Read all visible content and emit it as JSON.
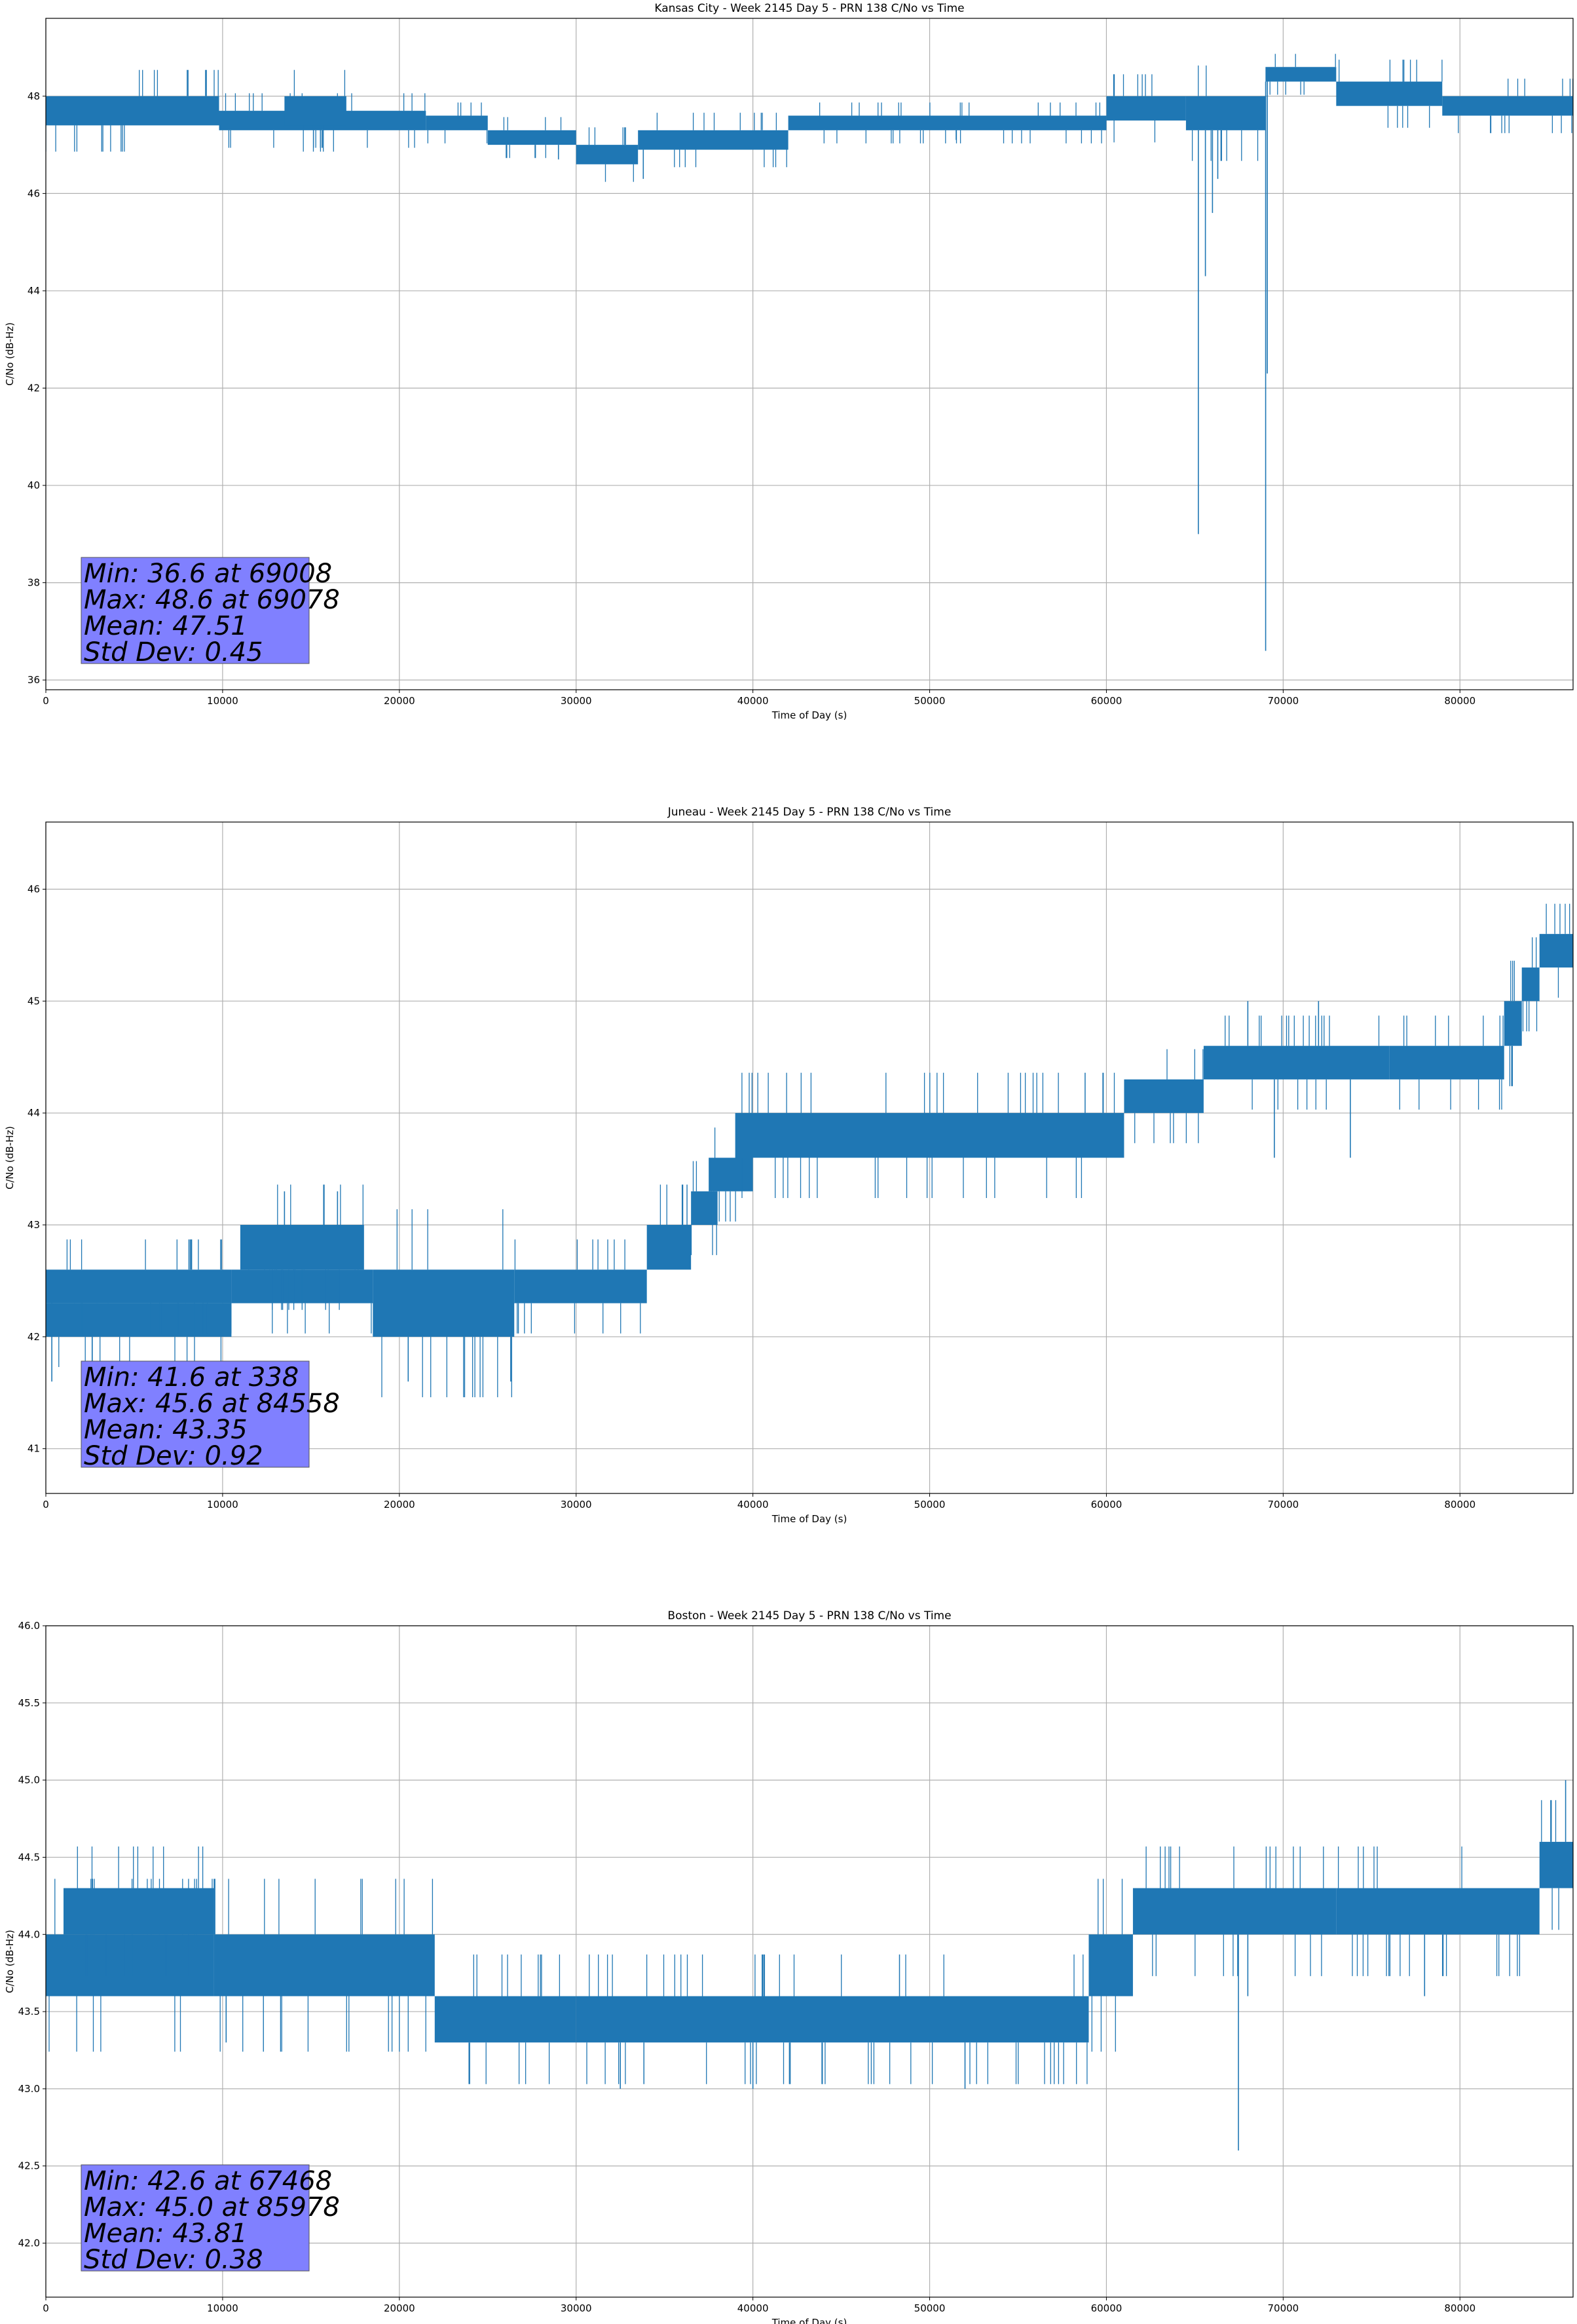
{
  "colors": {
    "line": "#1f77b4",
    "grid": "#b0b0b0",
    "stats_box": "#8080ff",
    "axes": "#000000"
  },
  "chart_data": [
    {
      "type": "line",
      "title": "Kansas City - Week 2145 Day 5 - PRN 138 C/No vs Time",
      "xlabel": "Time of Day (s)",
      "ylabel": "C/No (dB-Hz)",
      "xlim": [
        0,
        86400
      ],
      "ylim": [
        35.8,
        49.6
      ],
      "xticks": [
        0,
        10000,
        20000,
        30000,
        40000,
        50000,
        60000,
        70000,
        80000
      ],
      "yticks": [
        36,
        38,
        40,
        42,
        44,
        46,
        48
      ],
      "grid": true,
      "stats": [
        "Min: 36.6 at 69008",
        "Max: 48.6 at 69078",
        "Mean: 47.51",
        "Std Dev: 0.45"
      ],
      "series": [
        {
          "name": "C/No",
          "segments": [
            {
              "x": [
                0,
                9800
              ],
              "lo": 47.4,
              "hi": 48.0
            },
            {
              "x": [
                9800,
                21500
              ],
              "lo": 47.3,
              "hi": 47.7
            },
            {
              "x": [
                13500,
                17000
              ],
              "lo": 47.4,
              "hi": 48.0
            },
            {
              "x": [
                21500,
                25000
              ],
              "lo": 47.3,
              "hi": 47.6
            },
            {
              "x": [
                25000,
                30000
              ],
              "lo": 47.0,
              "hi": 47.3
            },
            {
              "x": [
                30000,
                33500
              ],
              "lo": 46.6,
              "hi": 47.0
            },
            {
              "x": [
                33500,
                42000
              ],
              "lo": 46.9,
              "hi": 47.3
            },
            {
              "x": [
                42000,
                60000
              ],
              "lo": 47.3,
              "hi": 47.6
            },
            {
              "x": [
                60000,
                64500
              ],
              "lo": 47.5,
              "hi": 48.0
            },
            {
              "x": [
                64500,
                69000
              ],
              "lo": 47.3,
              "hi": 48.0
            },
            {
              "x": [
                69000,
                73000
              ],
              "lo": 48.3,
              "hi": 48.6
            },
            {
              "x": [
                73000,
                79000
              ],
              "lo": 47.8,
              "hi": 48.3
            },
            {
              "x": [
                79000,
                86400
              ],
              "lo": 47.6,
              "hi": 48.0
            }
          ],
          "spikes": [
            [
              65200,
              39.0
            ],
            [
              65600,
              44.3
            ],
            [
              66000,
              45.6
            ],
            [
              66300,
              46.3
            ],
            [
              69008,
              36.6
            ],
            [
              69100,
              42.3
            ],
            [
              29000,
              46.7
            ],
            [
              33800,
              46.3
            ],
            [
              51500,
              47.1
            ]
          ]
        }
      ]
    },
    {
      "type": "line",
      "title": "Juneau - Week 2145 Day 5 - PRN 138 C/No vs Time",
      "xlabel": "Time of Day (s)",
      "ylabel": "C/No (dB-Hz)",
      "xlim": [
        0,
        86400
      ],
      "ylim": [
        40.6,
        46.6
      ],
      "xticks": [
        0,
        10000,
        20000,
        30000,
        40000,
        50000,
        60000,
        70000,
        80000
      ],
      "yticks": [
        41,
        42,
        43,
        44,
        45,
        46
      ],
      "grid": true,
      "stats": [
        "Min: 41.6 at 338",
        "Max: 45.6 at 84558",
        "Mean: 43.35",
        "Std Dev: 0.92"
      ],
      "series": [
        {
          "name": "C/No",
          "segments": [
            {
              "x": [
                0,
                10500
              ],
              "lo": 42.0,
              "hi": 42.3
            },
            {
              "x": [
                0,
                10500
              ],
              "lo": 42.3,
              "hi": 42.6
            },
            {
              "x": [
                10500,
                18500
              ],
              "lo": 42.3,
              "hi": 42.6
            },
            {
              "x": [
                11000,
                18000
              ],
              "lo": 42.6,
              "hi": 43.0
            },
            {
              "x": [
                18500,
                26500
              ],
              "lo": 42.0,
              "hi": 42.6
            },
            {
              "x": [
                26500,
                34000
              ],
              "lo": 42.3,
              "hi": 42.6
            },
            {
              "x": [
                34000,
                36500
              ],
              "lo": 42.6,
              "hi": 43.0
            },
            {
              "x": [
                36500,
                38000
              ],
              "lo": 43.0,
              "hi": 43.3
            },
            {
              "x": [
                37500,
                40000
              ],
              "lo": 43.3,
              "hi": 43.6
            },
            {
              "x": [
                39000,
                61000
              ],
              "lo": 43.6,
              "hi": 44.0
            },
            {
              "x": [
                61000,
                65500
              ],
              "lo": 44.0,
              "hi": 44.3
            },
            {
              "x": [
                65500,
                76000
              ],
              "lo": 44.3,
              "hi": 44.6
            },
            {
              "x": [
                76000,
                82500
              ],
              "lo": 44.3,
              "hi": 44.6
            },
            {
              "x": [
                82500,
                83500
              ],
              "lo": 44.6,
              "hi": 45.0
            },
            {
              "x": [
                83500,
                84500
              ],
              "lo": 45.0,
              "hi": 45.3
            },
            {
              "x": [
                84500,
                86400
              ],
              "lo": 45.3,
              "hi": 45.6
            }
          ],
          "spikes": [
            [
              338,
              41.6
            ],
            [
              20500,
              41.6
            ],
            [
              26300,
              41.6
            ],
            [
              13500,
              43.3
            ],
            [
              16500,
              43.3
            ],
            [
              69500,
              43.6
            ],
            [
              73800,
              43.6
            ],
            [
              68000,
              45.0
            ],
            [
              72000,
              45.0
            ]
          ]
        }
      ]
    },
    {
      "type": "line",
      "title": "Boston - Week 2145 Day 5 - PRN 138 C/No vs Time",
      "xlabel": "Time of Day (s)",
      "ylabel": "C/No (dB-Hz)",
      "xlim": [
        0,
        86400
      ],
      "ylim": [
        41.65,
        46.0
      ],
      "xticks": [
        0,
        10000,
        20000,
        30000,
        40000,
        50000,
        60000,
        70000,
        80000
      ],
      "yticks": [
        42.0,
        42.5,
        43.0,
        43.5,
        44.0,
        44.5,
        45.0,
        45.5,
        46.0
      ],
      "grid": true,
      "stats": [
        "Min: 42.6 at 67468",
        "Max: 45.0 at 85978",
        "Mean: 43.81",
        "Std Dev: 0.38"
      ],
      "series": [
        {
          "name": "C/No",
          "segments": [
            {
              "x": [
                0,
                9500
              ],
              "lo": 43.6,
              "hi": 44.0
            },
            {
              "x": [
                1000,
                9500
              ],
              "lo": 44.0,
              "hi": 44.3
            },
            {
              "x": [
                9500,
                22000
              ],
              "lo": 43.6,
              "hi": 44.0
            },
            {
              "x": [
                22000,
                30000
              ],
              "lo": 43.3,
              "hi": 43.6
            },
            {
              "x": [
                30000,
                59000
              ],
              "lo": 43.3,
              "hi": 43.6
            },
            {
              "x": [
                59000,
                61500
              ],
              "lo": 43.6,
              "hi": 44.0
            },
            {
              "x": [
                61500,
                73000
              ],
              "lo": 44.0,
              "hi": 44.3
            },
            {
              "x": [
                73000,
                84500
              ],
              "lo": 44.0,
              "hi": 44.3
            },
            {
              "x": [
                84500,
                86400
              ],
              "lo": 44.3,
              "hi": 44.6
            }
          ],
          "spikes": [
            [
              67468,
              42.6
            ],
            [
              32500,
              43.0
            ],
            [
              52000,
              43.0
            ],
            [
              40000,
              43.0
            ],
            [
              10200,
              43.3
            ],
            [
              85978,
              45.0
            ],
            [
              68000,
              43.6
            ],
            [
              78000,
              43.6
            ]
          ]
        }
      ]
    }
  ]
}
